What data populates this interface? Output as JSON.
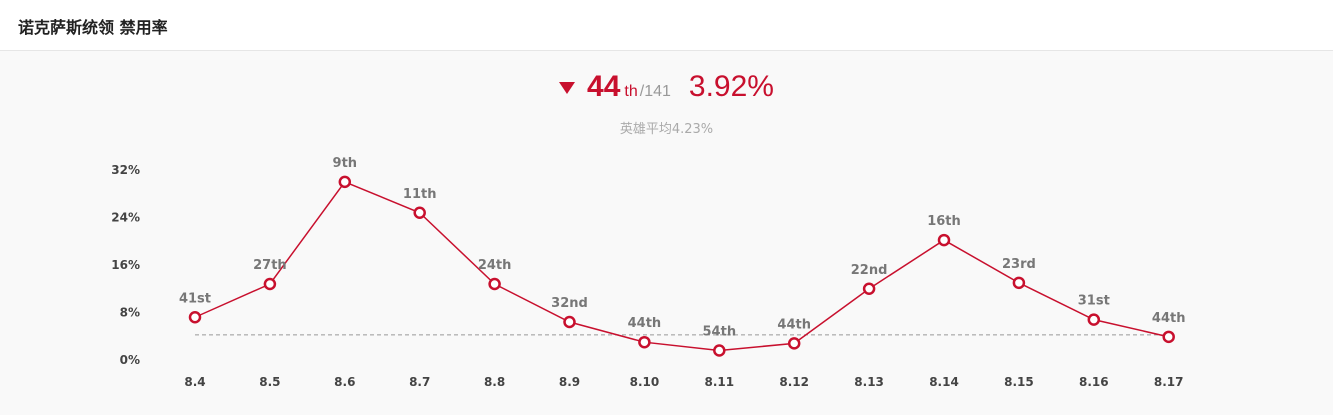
{
  "header": {
    "title": "诺克萨斯统领 禁用率"
  },
  "summary": {
    "rank": "44",
    "rank_suffix": "th",
    "total": "/141",
    "rate": "3.92%",
    "average": "英雄平均4.23%"
  },
  "colors": {
    "accent": "#c8102e",
    "avg_line": "#999999",
    "label": "#777777"
  },
  "chart_data": {
    "type": "line",
    "categories": [
      "8.4",
      "8.5",
      "8.6",
      "8.7",
      "8.8",
      "8.9",
      "8.10",
      "8.11",
      "8.12",
      "8.13",
      "8.14",
      "8.15",
      "8.16",
      "8.17"
    ],
    "series": [
      {
        "values": [
          7.2,
          12.8,
          30.0,
          24.8,
          12.8,
          6.4,
          3.0,
          1.6,
          2.8,
          12.0,
          20.2,
          13.0,
          6.8,
          3.9
        ]
      }
    ],
    "rank_labels": [
      "41st",
      "27th",
      "9th",
      "11th",
      "24th",
      "32nd",
      "44th",
      "54th",
      "44th",
      "22nd",
      "16th",
      "23rd",
      "31st",
      "44th"
    ],
    "average_line": 4.23,
    "ylim": [
      0,
      32
    ],
    "yticks": [
      "32%",
      "24%",
      "16%",
      "8%",
      "0%"
    ],
    "ytick_values": [
      32,
      24,
      16,
      8,
      0
    ],
    "grid": false,
    "legend": "none"
  }
}
